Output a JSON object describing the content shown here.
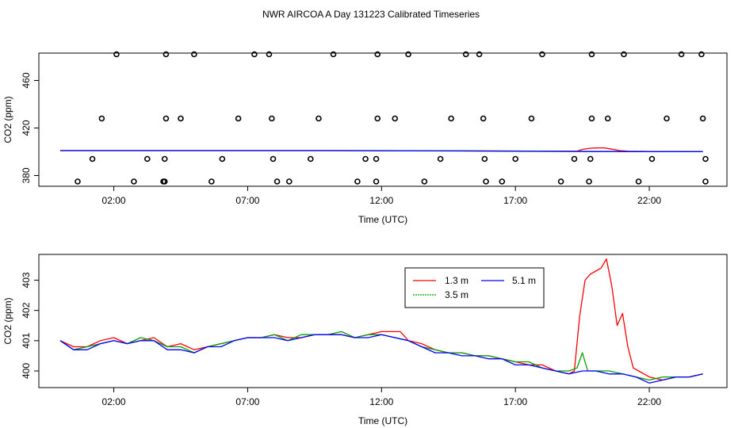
{
  "title": "NWR AIRCOA A  Day 131223  Calibrated Timeseries",
  "chart_data": [
    {
      "type": "scatter",
      "ylabel": "CO2 (ppm)",
      "xlabel": "Time (UTC)",
      "xlim": [
        -0.8,
        24.9
      ],
      "ylim": [
        371,
        483
      ],
      "x_ticks": [
        2,
        7,
        12,
        17,
        22
      ],
      "x_tick_labels": [
        "02:00",
        "07:00",
        "12:00",
        "17:00",
        "22:00"
      ],
      "y_ticks": [
        380,
        420,
        460
      ],
      "y_tick_labels": [
        "380",
        "420",
        "460"
      ],
      "calibration_points": {
        "x": [
          0.65,
          2.75,
          3.85,
          3.9,
          5.65,
          8.55,
          8.1,
          11.1,
          11.8,
          13.6,
          15.9,
          16.5,
          18.7,
          19.75,
          21.6,
          24.1,
          1.2,
          3.25,
          3.9,
          6.05,
          7.95,
          9.35,
          11.4,
          11.8,
          14.2,
          15.85,
          17.0,
          19.2,
          19.8,
          22.1,
          24.1,
          1.55,
          3.95,
          4.5,
          6.65,
          7.9,
          9.65,
          11.85,
          12.5,
          14.6,
          15.8,
          17.6,
          19.85,
          20.45,
          22.65,
          24.0,
          2.1,
          3.95,
          5.0,
          7.25,
          7.8,
          10.2,
          11.85,
          13.0,
          15.15,
          15.65,
          18.0,
          19.85,
          21.05,
          23.2,
          23.95
        ],
        "y": [
          375,
          375,
          375,
          375,
          375,
          375,
          375,
          375,
          375,
          375,
          375,
          375,
          375,
          375,
          375,
          375,
          394,
          394,
          394,
          394,
          394,
          394,
          394,
          394,
          394,
          394,
          394,
          394,
          394,
          394,
          394,
          428,
          428,
          428,
          428,
          428,
          428,
          428,
          428,
          428,
          428,
          428,
          428,
          428,
          428,
          428,
          482,
          482,
          482,
          482,
          482,
          482,
          482,
          482,
          482,
          482,
          482,
          482,
          482,
          482,
          482
        ]
      },
      "series": [
        {
          "name": "1.3 m",
          "color": "#ff0000",
          "x": [
            0,
            5,
            10,
            15,
            19.3,
            19.5,
            19.8,
            20.0,
            20.3,
            20.6,
            20.9,
            21.2,
            22,
            24
          ],
          "y": [
            401,
            401,
            401,
            400.8,
            400.5,
            402,
            403,
            403.2,
            403.3,
            402.2,
            401,
            400.5,
            400.2,
            400.1
          ]
        },
        {
          "name": "3.5 m",
          "color": "#00a000",
          "x": [
            0,
            5,
            10,
            15,
            20,
            24
          ],
          "y": [
            401,
            401,
            401,
            400.8,
            400.3,
            400.1
          ]
        },
        {
          "name": "5.1 m",
          "color": "#0000ff",
          "x": [
            0,
            5,
            10,
            15,
            20,
            24
          ],
          "y": [
            401,
            401,
            401,
            400.7,
            400.2,
            400.1
          ]
        }
      ]
    },
    {
      "type": "line",
      "ylabel": "CO2 (ppm)",
      "xlabel": "Time (UTC)",
      "xlim": [
        -0.8,
        24.9
      ],
      "ylim": [
        399.45,
        403.85
      ],
      "x_ticks": [
        2,
        7,
        12,
        17,
        22
      ],
      "x_tick_labels": [
        "02:00",
        "07:00",
        "12:00",
        "17:00",
        "22:00"
      ],
      "y_ticks": [
        400,
        401,
        402,
        403
      ],
      "y_tick_labels": [
        "400",
        "401",
        "402",
        "403"
      ],
      "legend_position": "top-right",
      "series": [
        {
          "name": "1.3 m",
          "color": "#ff0000",
          "x": [
            0,
            0.5,
            1,
            1.5,
            2,
            2.5,
            3,
            3.5,
            4,
            4.5,
            5,
            5.5,
            6,
            6.5,
            7,
            7.5,
            8,
            8.5,
            9,
            9.5,
            10,
            10.5,
            11,
            11.5,
            12,
            12.3,
            12.7,
            13,
            13.5,
            14,
            14.5,
            15,
            15.5,
            16,
            16.5,
            17,
            17.5,
            18,
            18.5,
            19,
            19.2,
            19.4,
            19.6,
            19.8,
            20.0,
            20.2,
            20.4,
            20.6,
            20.8,
            21.0,
            21.2,
            21.4,
            21.6,
            22,
            22.5,
            23,
            23.5,
            24
          ],
          "y": [
            401.0,
            400.8,
            400.8,
            401.0,
            401.1,
            400.9,
            401.0,
            401.1,
            400.8,
            400.9,
            400.7,
            400.8,
            400.9,
            401.0,
            401.1,
            401.1,
            401.2,
            401.1,
            401.1,
            401.2,
            401.2,
            401.2,
            401.1,
            401.2,
            401.3,
            401.3,
            401.3,
            401.0,
            400.9,
            400.7,
            400.6,
            400.6,
            400.5,
            400.5,
            400.4,
            400.3,
            400.2,
            400.2,
            400.0,
            399.9,
            400.0,
            401.8,
            403.0,
            403.2,
            403.3,
            403.4,
            403.7,
            402.8,
            401.5,
            401.9,
            400.8,
            400.1,
            400.0,
            399.8,
            399.7,
            399.8,
            399.8,
            399.9
          ]
        },
        {
          "name": "3.5 m",
          "color": "#00a000",
          "x": [
            0,
            0.5,
            1,
            1.5,
            2,
            2.5,
            3,
            3.5,
            4,
            4.5,
            5,
            5.5,
            6,
            6.5,
            7,
            7.5,
            8,
            8.5,
            9,
            9.5,
            10,
            10.5,
            11,
            11.5,
            12,
            12.5,
            13,
            13.5,
            14,
            14.5,
            15,
            15.5,
            16,
            16.5,
            17,
            17.5,
            18,
            18.5,
            19,
            19.3,
            19.5,
            19.7,
            20,
            20.5,
            21,
            21.5,
            22,
            22.5,
            23,
            23.5,
            24
          ],
          "y": [
            401.0,
            400.7,
            400.8,
            400.9,
            401.0,
            400.9,
            401.1,
            401.0,
            400.8,
            400.8,
            400.6,
            400.8,
            400.9,
            401.0,
            401.1,
            401.1,
            401.2,
            401.0,
            401.2,
            401.2,
            401.2,
            401.3,
            401.1,
            401.2,
            401.2,
            401.1,
            401.0,
            400.8,
            400.7,
            400.6,
            400.6,
            400.5,
            400.5,
            400.4,
            400.3,
            400.3,
            400.1,
            400.0,
            400.0,
            400.1,
            400.6,
            400.0,
            400.0,
            400.0,
            399.9,
            399.8,
            399.7,
            399.8,
            399.8,
            399.8,
            399.9
          ]
        },
        {
          "name": "5.1 m",
          "color": "#0000ff",
          "x": [
            0,
            0.5,
            1,
            1.5,
            2,
            2.5,
            3,
            3.5,
            4,
            4.5,
            5,
            5.5,
            6,
            6.5,
            7,
            7.5,
            8,
            8.5,
            9,
            9.5,
            10,
            10.5,
            11,
            11.5,
            12,
            12.5,
            13,
            13.5,
            14,
            14.5,
            15,
            15.5,
            16,
            16.5,
            17,
            17.5,
            18,
            18.5,
            19,
            19.5,
            20,
            20.5,
            21,
            21.5,
            22,
            22.5,
            23,
            23.5,
            24
          ],
          "y": [
            401.0,
            400.7,
            400.7,
            400.9,
            401.0,
            400.9,
            401.0,
            401.0,
            400.7,
            400.7,
            400.6,
            400.8,
            400.8,
            401.0,
            401.1,
            401.1,
            401.1,
            401.0,
            401.1,
            401.2,
            401.2,
            401.2,
            401.1,
            401.1,
            401.2,
            401.1,
            401.0,
            400.8,
            400.6,
            400.6,
            400.5,
            400.5,
            400.4,
            400.4,
            400.2,
            400.2,
            400.1,
            400.0,
            399.9,
            400.0,
            400.0,
            399.9,
            399.9,
            399.8,
            399.6,
            399.7,
            399.8,
            399.8,
            399.9
          ]
        }
      ]
    }
  ]
}
